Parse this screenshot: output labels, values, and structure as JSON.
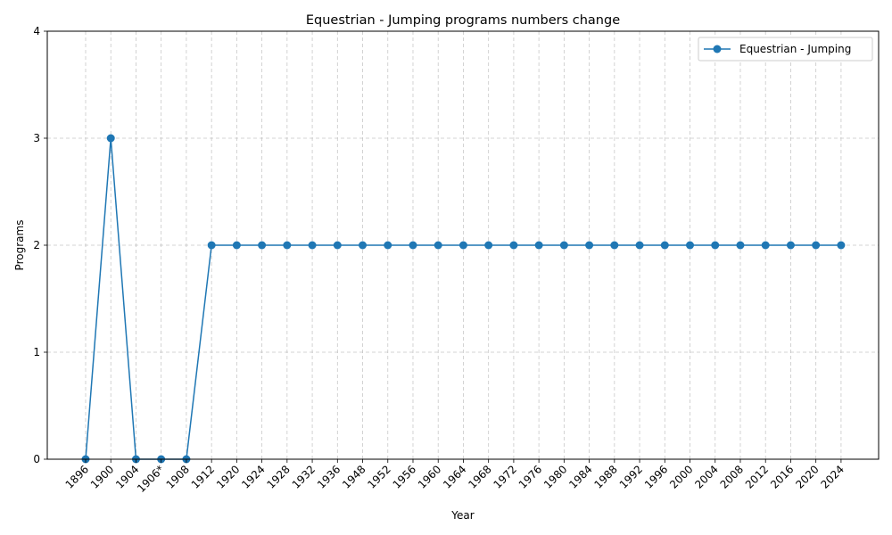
{
  "chart_data": {
    "type": "line",
    "title": "Equestrian - Jumping programs numbers change",
    "xlabel": "Year",
    "ylabel": "Programs",
    "categories": [
      "1896",
      "1900",
      "1904",
      "1906*",
      "1908",
      "1912",
      "1920",
      "1924",
      "1928",
      "1932",
      "1936",
      "1948",
      "1952",
      "1956",
      "1960",
      "1964",
      "1968",
      "1972",
      "1976",
      "1980",
      "1984",
      "1988",
      "1992",
      "1996",
      "2000",
      "2004",
      "2008",
      "2012",
      "2016",
      "2020",
      "2024"
    ],
    "series": [
      {
        "name": "Equestrian - Jumping",
        "values": [
          0,
          3,
          0,
          0,
          0,
          2,
          2,
          2,
          2,
          2,
          2,
          2,
          2,
          2,
          2,
          2,
          2,
          2,
          2,
          2,
          2,
          2,
          2,
          2,
          2,
          2,
          2,
          2,
          2,
          2,
          2
        ],
        "color": "#1f77b4",
        "marker": "circle"
      }
    ],
    "ylim": [
      0,
      4
    ],
    "yticks": [
      0,
      1,
      2,
      3,
      4
    ],
    "grid": true,
    "grid_style": "dashed",
    "legend_position": "top-right"
  }
}
